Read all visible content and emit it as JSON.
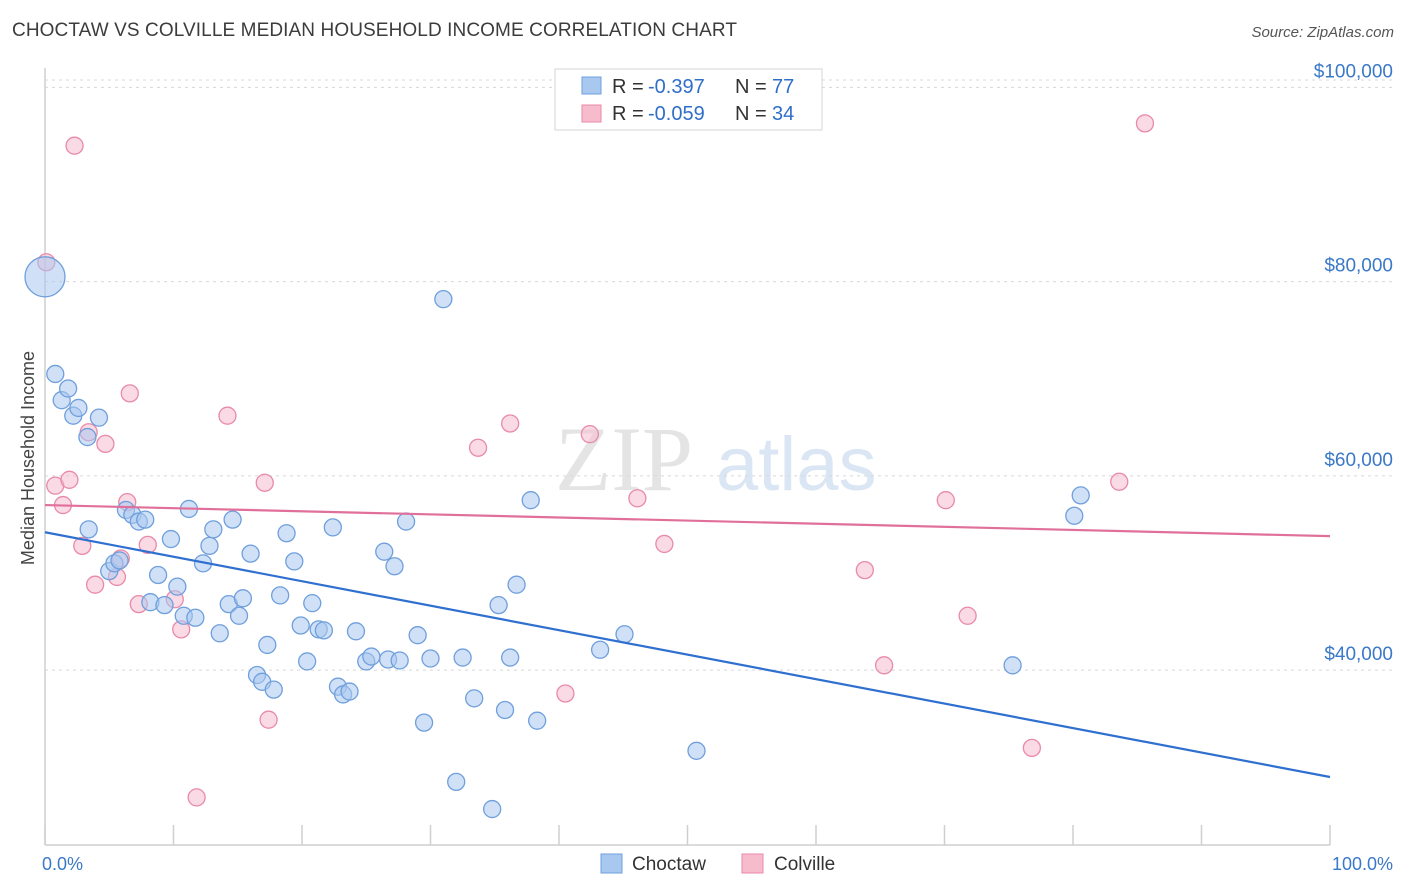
{
  "header": {
    "title": "CHOCTAW VS COLVILLE MEDIAN HOUSEHOLD INCOME CORRELATION CHART",
    "source": "Source: ZipAtlas.com"
  },
  "watermark": {
    "zip": "ZIP",
    "atlas": "atlas"
  },
  "colors": {
    "choctaw_fill": "#a9c8f0",
    "choctaw_stroke": "#6f9fdc",
    "choctaw_line": "#2f6fd0",
    "colville_fill": "#f6bccd",
    "colville_stroke": "#e98aa8",
    "colville_line": "#e0709a",
    "tick_text": "#3a78c8",
    "grid": "#d8d8d8"
  },
  "legend": {
    "rows": [
      {
        "series": "Choctaw",
        "r_label": "R =",
        "r_value": "-0.397",
        "n_label": "N =",
        "n_value": "77"
      },
      {
        "series": "Colville",
        "r_label": "R =",
        "r_value": "-0.059",
        "n_label": "N =",
        "n_value": "34"
      }
    ]
  },
  "chart_data": {
    "type": "scatter",
    "xlabel": "",
    "ylabel": "Median Household Income",
    "xlim": [
      0,
      100
    ],
    "ylim": [
      22000,
      102000
    ],
    "y_ticks": [
      40000,
      60000,
      80000,
      100000
    ],
    "y_tick_labels": [
      "$40,000",
      "$60,000",
      "$80,000",
      "$100,000"
    ],
    "x_tick_labels": [
      "0.0%",
      "100.0%"
    ],
    "grid": true,
    "legend_position": "bottom-center",
    "series": [
      {
        "name": "Choctaw",
        "r": -0.397,
        "n": 77,
        "trend": {
          "x": [
            0,
            100
          ],
          "y": [
            54200,
            29000
          ]
        },
        "points": [
          {
            "x": 0.0,
            "y": 80500,
            "big": true
          },
          {
            "x": 0.8,
            "y": 70500
          },
          {
            "x": 1.3,
            "y": 67800
          },
          {
            "x": 1.8,
            "y": 69000
          },
          {
            "x": 2.2,
            "y": 66200
          },
          {
            "x": 2.6,
            "y": 67000
          },
          {
            "x": 3.3,
            "y": 64000
          },
          {
            "x": 4.2,
            "y": 66000
          },
          {
            "x": 3.4,
            "y": 54500
          },
          {
            "x": 5.0,
            "y": 50200
          },
          {
            "x": 5.4,
            "y": 51000
          },
          {
            "x": 5.8,
            "y": 51300
          },
          {
            "x": 6.3,
            "y": 56500
          },
          {
            "x": 6.8,
            "y": 56000
          },
          {
            "x": 7.3,
            "y": 55300
          },
          {
            "x": 7.8,
            "y": 55500
          },
          {
            "x": 8.2,
            "y": 47000
          },
          {
            "x": 8.8,
            "y": 49800
          },
          {
            "x": 9.3,
            "y": 46700
          },
          {
            "x": 9.8,
            "y": 53500
          },
          {
            "x": 10.3,
            "y": 48600
          },
          {
            "x": 10.8,
            "y": 45600
          },
          {
            "x": 11.2,
            "y": 56600
          },
          {
            "x": 11.7,
            "y": 45400
          },
          {
            "x": 12.3,
            "y": 51000
          },
          {
            "x": 12.8,
            "y": 52800
          },
          {
            "x": 13.1,
            "y": 54500
          },
          {
            "x": 13.6,
            "y": 43800
          },
          {
            "x": 14.3,
            "y": 46800
          },
          {
            "x": 14.6,
            "y": 55500
          },
          {
            "x": 15.1,
            "y": 45600
          },
          {
            "x": 15.4,
            "y": 47400
          },
          {
            "x": 16.0,
            "y": 52000
          },
          {
            "x": 16.5,
            "y": 39500
          },
          {
            "x": 16.9,
            "y": 38800
          },
          {
            "x": 17.3,
            "y": 42600
          },
          {
            "x": 17.8,
            "y": 38000
          },
          {
            "x": 18.3,
            "y": 47700
          },
          {
            "x": 18.8,
            "y": 54100
          },
          {
            "x": 19.4,
            "y": 51200
          },
          {
            "x": 19.9,
            "y": 44600
          },
          {
            "x": 20.4,
            "y": 40900
          },
          {
            "x": 20.8,
            "y": 46900
          },
          {
            "x": 21.3,
            "y": 44200
          },
          {
            "x": 21.7,
            "y": 44100
          },
          {
            "x": 22.4,
            "y": 54700
          },
          {
            "x": 22.8,
            "y": 38300
          },
          {
            "x": 23.2,
            "y": 37500
          },
          {
            "x": 23.7,
            "y": 37800
          },
          {
            "x": 24.2,
            "y": 44000
          },
          {
            "x": 25.0,
            "y": 40900
          },
          {
            "x": 25.4,
            "y": 41400
          },
          {
            "x": 26.4,
            "y": 52200
          },
          {
            "x": 26.7,
            "y": 41100
          },
          {
            "x": 27.2,
            "y": 50700
          },
          {
            "x": 27.6,
            "y": 41000
          },
          {
            "x": 28.1,
            "y": 55300
          },
          {
            "x": 29.0,
            "y": 43600
          },
          {
            "x": 29.5,
            "y": 34600
          },
          {
            "x": 30.0,
            "y": 41200
          },
          {
            "x": 31.0,
            "y": 78200
          },
          {
            "x": 32.0,
            "y": 28500
          },
          {
            "x": 32.5,
            "y": 41300
          },
          {
            "x": 33.4,
            "y": 37100
          },
          {
            "x": 34.8,
            "y": 25700
          },
          {
            "x": 35.3,
            "y": 46700
          },
          {
            "x": 35.8,
            "y": 35900
          },
          {
            "x": 36.2,
            "y": 41300
          },
          {
            "x": 36.7,
            "y": 48800
          },
          {
            "x": 37.8,
            "y": 57500
          },
          {
            "x": 38.3,
            "y": 34800
          },
          {
            "x": 43.2,
            "y": 42100
          },
          {
            "x": 45.1,
            "y": 43700
          },
          {
            "x": 50.7,
            "y": 31700
          },
          {
            "x": 75.3,
            "y": 40500
          },
          {
            "x": 80.1,
            "y": 55900
          },
          {
            "x": 80.6,
            "y": 58000
          }
        ]
      },
      {
        "name": "Colville",
        "r": -0.059,
        "n": 34,
        "trend": {
          "x": [
            0,
            100
          ],
          "y": [
            57000,
            53800
          ]
        },
        "points": [
          {
            "x": 0.1,
            "y": 82000
          },
          {
            "x": 0.8,
            "y": 59000
          },
          {
            "x": 1.4,
            "y": 57000
          },
          {
            "x": 1.9,
            "y": 59600
          },
          {
            "x": 2.3,
            "y": 94000
          },
          {
            "x": 2.9,
            "y": 52800
          },
          {
            "x": 3.4,
            "y": 64500
          },
          {
            "x": 3.9,
            "y": 48800
          },
          {
            "x": 4.7,
            "y": 63300
          },
          {
            "x": 5.6,
            "y": 49600
          },
          {
            "x": 5.9,
            "y": 51500
          },
          {
            "x": 6.4,
            "y": 57300
          },
          {
            "x": 6.6,
            "y": 68500
          },
          {
            "x": 7.3,
            "y": 46800
          },
          {
            "x": 8.0,
            "y": 52900
          },
          {
            "x": 10.1,
            "y": 47300
          },
          {
            "x": 10.6,
            "y": 44200
          },
          {
            "x": 11.8,
            "y": 26900
          },
          {
            "x": 14.2,
            "y": 66200
          },
          {
            "x": 17.1,
            "y": 59300
          },
          {
            "x": 17.4,
            "y": 34900
          },
          {
            "x": 33.7,
            "y": 62900
          },
          {
            "x": 36.2,
            "y": 65400
          },
          {
            "x": 40.5,
            "y": 37600
          },
          {
            "x": 42.4,
            "y": 64300
          },
          {
            "x": 46.1,
            "y": 57700
          },
          {
            "x": 48.2,
            "y": 53000
          },
          {
            "x": 63.8,
            "y": 50300
          },
          {
            "x": 65.3,
            "y": 40500
          },
          {
            "x": 70.1,
            "y": 57500
          },
          {
            "x": 71.8,
            "y": 45600
          },
          {
            "x": 76.8,
            "y": 32000
          },
          {
            "x": 83.6,
            "y": 59400
          },
          {
            "x": 85.6,
            "y": 96300
          }
        ]
      }
    ]
  }
}
